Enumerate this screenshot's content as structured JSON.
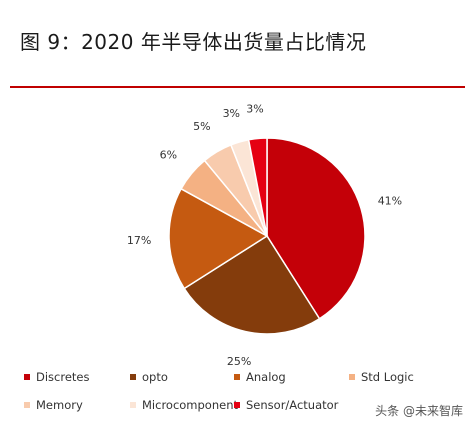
{
  "title": "图 9：2020 年半导体出货量占比情况",
  "watermark": "头条 @未来智库",
  "chart_data": {
    "type": "pie",
    "slices": [
      {
        "label": "Discretes",
        "value": 41,
        "value_label": "41%",
        "color": "#c40008"
      },
      {
        "label": "opto",
        "value": 25,
        "value_label": "25%",
        "color": "#843c0c"
      },
      {
        "label": "Analog",
        "value": 17,
        "value_label": "17%",
        "color": "#c55a11"
      },
      {
        "label": "Std Logic",
        "value": 6,
        "value_label": "6%",
        "color": "#f4b183"
      },
      {
        "label": "Memory",
        "value": 5,
        "value_label": "5%",
        "color": "#f8cbad"
      },
      {
        "label": "Microcomponent",
        "value": 3,
        "value_label": "3%",
        "color": "#fbe5d6"
      },
      {
        "label": "Sensor/Actuator",
        "value": 3,
        "value_label": "3%",
        "color": "#e50012"
      }
    ],
    "legend_placement": "bottom"
  }
}
